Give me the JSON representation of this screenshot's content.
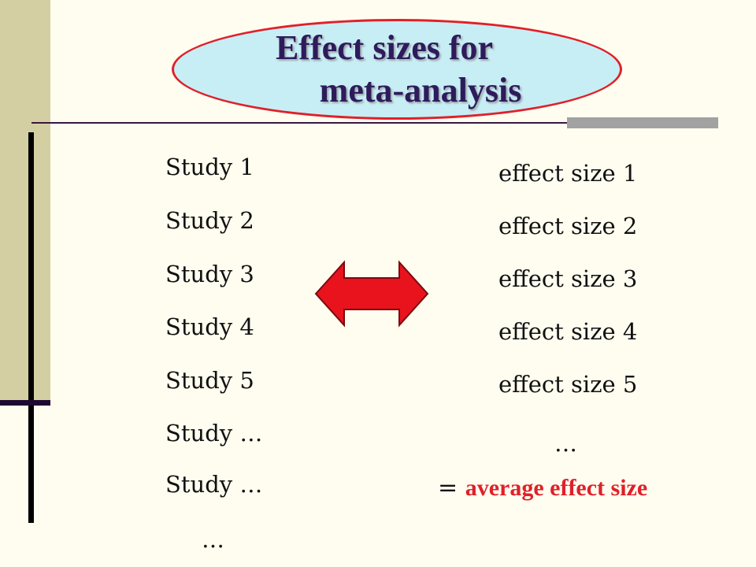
{
  "slide": {
    "title_line1": "Effect sizes for",
    "title_line2": "meta-analysis",
    "studies": [
      "Study 1",
      "Study 2",
      "Study 3",
      "Study 4",
      "Study 5",
      "Study …",
      "Study …"
    ],
    "studies_ellipsis": "…",
    "effects": [
      "effect size 1",
      "effect size 2",
      "effect size 3",
      "effect size 4",
      "effect size 5"
    ],
    "effects_ellipsis": "…",
    "result_equals": "=",
    "result_label": "average effect size"
  },
  "colors": {
    "background": "#fffdf0",
    "side_panel": "#d4cfa3",
    "ellipse_fill": "#c7eef5",
    "ellipse_border": "#e0202a",
    "title": "#2e1b5c",
    "arrow": "#e8131c",
    "accent": "#e0202a"
  },
  "icons": {
    "double_arrow": "double-headed-arrow-icon"
  }
}
